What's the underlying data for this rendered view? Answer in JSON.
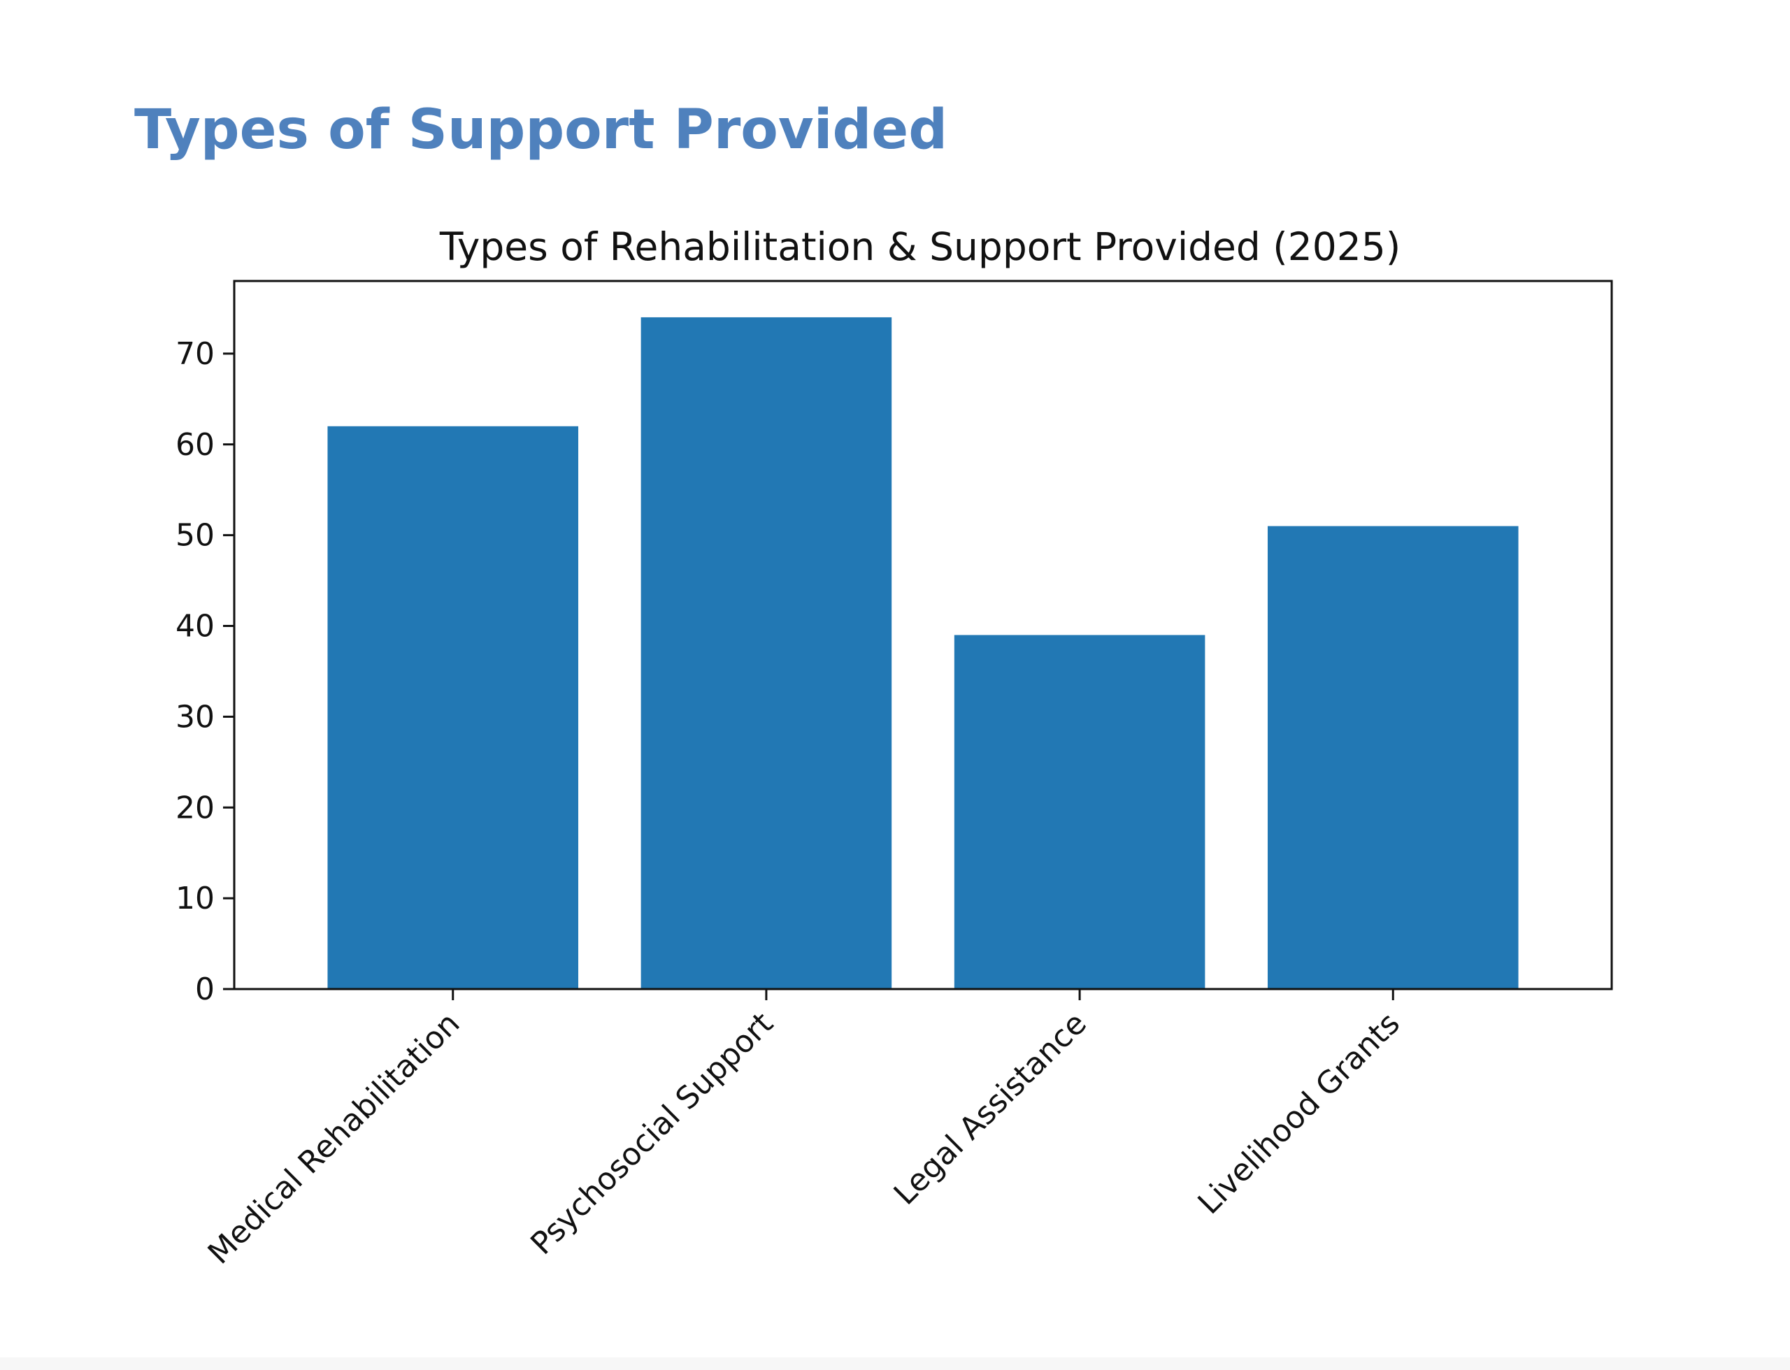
{
  "page": {
    "heading": "Types of Support Provided",
    "heading_color": "#4f81bd"
  },
  "chart_data": {
    "type": "bar",
    "title": "Types of Rehabilitation & Support Provided (2025)",
    "xlabel": "",
    "ylabel": "",
    "categories": [
      "Medical Rehabilitation",
      "Psychosocial Support",
      "Legal Assistance",
      "Livelihood Grants"
    ],
    "values": [
      62,
      74,
      39,
      51
    ],
    "ylim": [
      0,
      78
    ],
    "yticks": [
      0,
      10,
      20,
      30,
      40,
      50,
      60,
      70
    ],
    "bar_color": "#2278b4",
    "grid": false,
    "legend": "none"
  }
}
